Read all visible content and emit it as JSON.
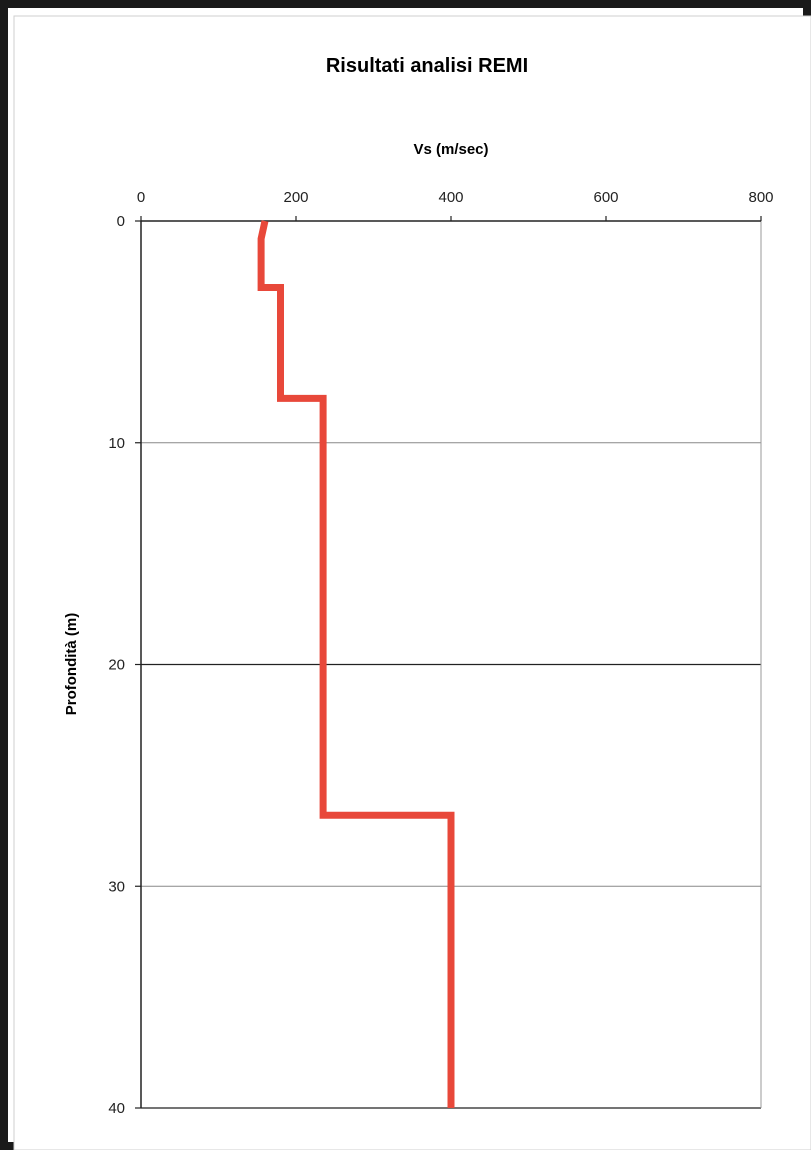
{
  "chart_data": {
    "type": "line",
    "title": "Risultati analisi REMI",
    "xlabel": "Vs (m/sec)",
    "ylabel": "Profondità (m)",
    "xlim": [
      0,
      800
    ],
    "ylim": [
      0,
      40
    ],
    "y_inverted": true,
    "x_axis_position": "top",
    "x_ticks": [
      "0",
      "200",
      "400",
      "600",
      "800"
    ],
    "y_ticks": [
      "0",
      "10",
      "20",
      "30",
      "40"
    ],
    "grid": true,
    "legend": "none",
    "series": [
      {
        "color": "#e8483a",
        "x": [
          160,
          155,
          155,
          180,
          180,
          235,
          235,
          235,
          400,
          400
        ],
        "y": [
          0,
          0.8,
          3,
          3,
          8,
          8,
          20,
          26.8,
          26.8,
          40
        ]
      }
    ]
  },
  "colors": {
    "line": "#e8483a",
    "frame": "#222222",
    "grid": "#888888"
  }
}
